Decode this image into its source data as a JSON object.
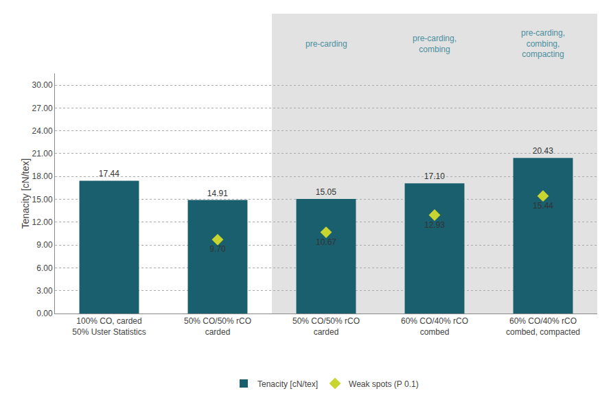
{
  "chart_data": {
    "type": "bar",
    "categories": [
      "100% CO, carded\n50% Uster Statistics",
      "50% CO/50% rCO\ncarded",
      "50% CO/50% rCO\ncarded",
      "60% CO/40% rCO\ncombed",
      "60% CO/40% rCO\ncombed, compacted"
    ],
    "ylabel": "Tenacity [cN/tex]",
    "ylim": [
      0,
      31.5
    ],
    "yticks": [
      {
        "value": 0.0,
        "label": "0.00"
      },
      {
        "value": 3.0,
        "label": "3.00"
      },
      {
        "value": 6.0,
        "label": "6.00"
      },
      {
        "value": 9.0,
        "label": "9.00"
      },
      {
        "value": 12.0,
        "label": "12.00"
      },
      {
        "value": 15.0,
        "label": "15.00"
      },
      {
        "value": 18.0,
        "label": "18.00"
      },
      {
        "value": 21.0,
        "label": "21.00"
      },
      {
        "value": 24.0,
        "label": "24.00"
      },
      {
        "value": 27.0,
        "label": "27.00"
      },
      {
        "value": 30.0,
        "label": "30.00"
      }
    ],
    "grid": true,
    "legend": "bottom",
    "data_labels": true,
    "series": [
      {
        "name": "Tenacity [cN/tex]",
        "type": "bar",
        "color": "#1a5f6e",
        "values": [
          17.44,
          14.91,
          15.05,
          17.1,
          20.43
        ],
        "value_labels": [
          "17.44",
          "14.91",
          "15.05",
          "17.10",
          "20.43"
        ]
      },
      {
        "name": "Weak spots (P 0.1)",
        "type": "scatter",
        "marker": "diamond",
        "color": "#c8d430",
        "values": [
          null,
          9.7,
          10.67,
          12.93,
          15.44
        ],
        "value_labels": [
          null,
          "9.70",
          "10.67",
          "12.93",
          "15.44"
        ]
      }
    ],
    "sections": {
      "labels": [
        null,
        null,
        "pre-carding",
        "pre-carding,\ncombing",
        "pre-carding,\ncombing,\ncompacting"
      ],
      "color": "#e2e2e2",
      "text_color": "#4a8fa0"
    }
  }
}
